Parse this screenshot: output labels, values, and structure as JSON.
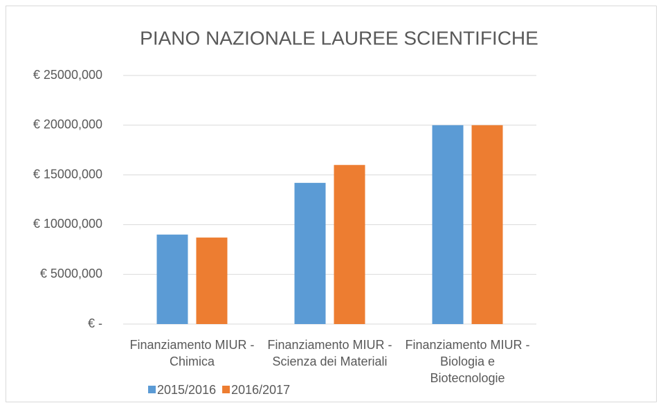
{
  "chart_data": {
    "type": "bar",
    "title": "PIANO NAZIONALE LAUREE SCIENTIFICHE",
    "categories": [
      "Finanziamento MIUR - Chimica",
      "Finanziamento MIUR - Scienza dei Materiali",
      "Finanziamento MIUR -Biologia e Biotecnologie"
    ],
    "series": [
      {
        "name": "2015/2016",
        "color": "#5b9bd5",
        "values": [
          9000,
          14200,
          20000
        ]
      },
      {
        "name": "2016/2017",
        "color": "#ed7d31",
        "values": [
          8700,
          16000,
          20000
        ]
      }
    ],
    "ylim": [
      0,
      25000
    ],
    "yticks": [
      {
        "value": 0,
        "label": "€ -"
      },
      {
        "value": 5000,
        "label": "€ 5000,000"
      },
      {
        "value": 10000,
        "label": "€ 10000,000"
      },
      {
        "value": 15000,
        "label": "€ 15000,000"
      },
      {
        "value": 20000,
        "label": "€ 20000,000"
      },
      {
        "value": 25000,
        "label": "€ 25000,000"
      }
    ],
    "grid": true,
    "legend": "bottom-left"
  }
}
